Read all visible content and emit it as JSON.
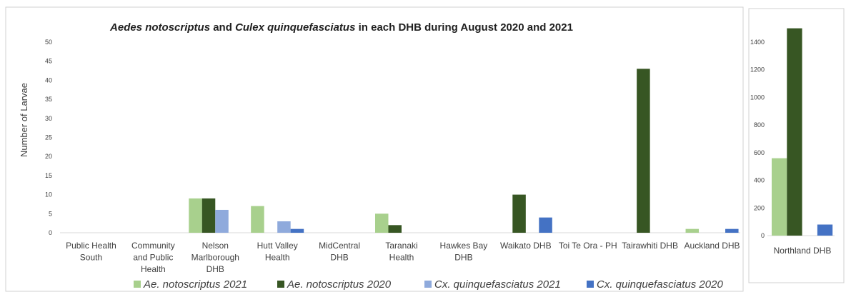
{
  "chart_data": [
    {
      "type": "bar",
      "title_parts": [
        {
          "text": "Aedes notoscriptus",
          "italic": true
        },
        {
          "text": " and ",
          "italic": false
        },
        {
          "text": "Culex quinquefasciatus",
          "italic": true
        },
        {
          "text": " in each DHB during August 2020 and 2021",
          "italic": false
        }
      ],
      "ylabel": "Number of Larvae",
      "ylim": [
        0,
        50
      ],
      "yticks": [
        0,
        5,
        10,
        15,
        20,
        25,
        30,
        35,
        40,
        45,
        50
      ],
      "categories": [
        [
          "Public Health",
          "South"
        ],
        [
          "Community",
          "and Public",
          "Health"
        ],
        [
          "Nelson",
          "Marlborough",
          "DHB"
        ],
        [
          "Hutt Valley",
          "Health"
        ],
        [
          "MidCentral",
          "DHB"
        ],
        [
          "Taranaki",
          "Health"
        ],
        [
          "Hawkes Bay",
          "DHB"
        ],
        [
          "Waikato DHB"
        ],
        [
          "Toi Te Ora - PH"
        ],
        [
          "Tairawhiti DHB"
        ],
        [
          "Auckland DHB"
        ]
      ],
      "series": [
        {
          "name": "Ae. notoscriptus 2021",
          "color": "#a8d08d",
          "values": [
            0,
            0,
            9,
            7,
            0,
            5,
            0,
            0,
            0,
            0,
            1
          ]
        },
        {
          "name": "Ae. notoscriptus 2020",
          "color": "#375623",
          "values": [
            0,
            0,
            9,
            0,
            0,
            2,
            0,
            10,
            0,
            43,
            0
          ]
        },
        {
          "name": "Cx. quinquefasciatus 2021",
          "color": "#8faadc",
          "values": [
            0,
            0,
            6,
            3,
            0,
            0,
            0,
            0,
            0,
            0,
            0
          ]
        },
        {
          "name": "Cx. quinquefasciatus 2020",
          "color": "#4472c4",
          "values": [
            0,
            0,
            0,
            1,
            0,
            0,
            0,
            4,
            0,
            0,
            1
          ]
        }
      ],
      "grid": false,
      "legend_position": "bottom"
    },
    {
      "type": "bar",
      "ylim": [
        0,
        1400
      ],
      "yticks": [
        0,
        200,
        400,
        600,
        800,
        1000,
        1200,
        1400
      ],
      "categories": [
        [
          "Northland DHB"
        ]
      ],
      "series": [
        {
          "name": "Ae. notoscriptus 2021",
          "color": "#a8d08d",
          "values": [
            560
          ]
        },
        {
          "name": "Ae. notoscriptus 2020",
          "color": "#375623",
          "values": [
            1500
          ]
        },
        {
          "name": "Cx. quinquefasciatus 2021",
          "color": "#8faadc",
          "values": [
            0
          ]
        },
        {
          "name": "Cx. quinquefasciatus 2020",
          "color": "#4472c4",
          "values": [
            80
          ]
        }
      ],
      "grid": false
    }
  ]
}
